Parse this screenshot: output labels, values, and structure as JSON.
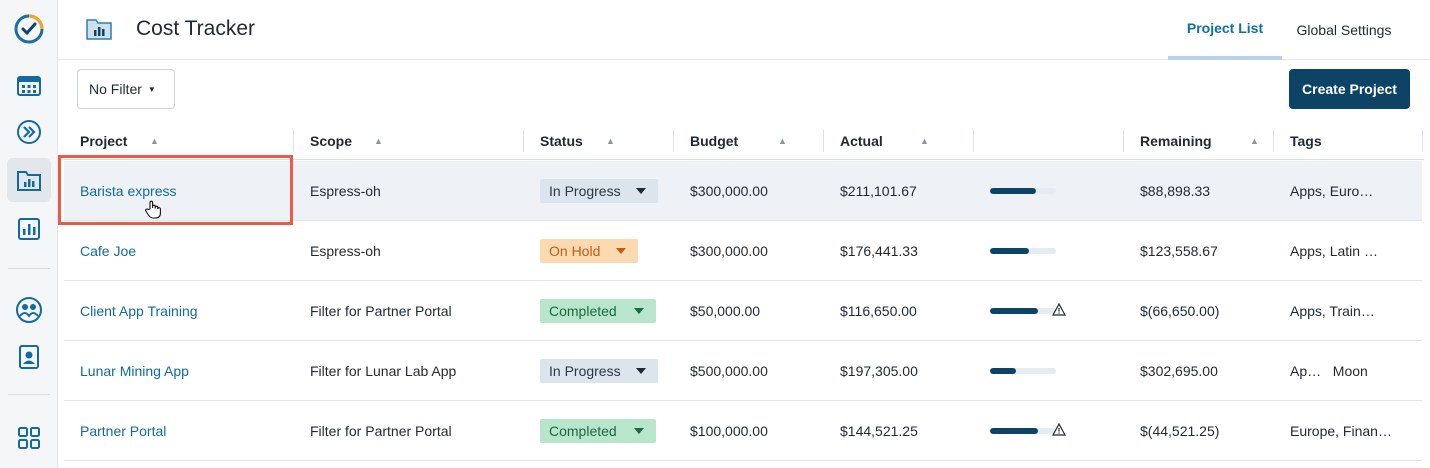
{
  "app": {
    "title": "Cost Tracker"
  },
  "rail": {
    "icons": [
      "check-circle-icon",
      "calendar-icon",
      "forward-icon",
      "folder-chart-icon",
      "bar-chart-icon",
      "team-icon",
      "contact-icon",
      "apps-grid-icon"
    ]
  },
  "tabs": [
    {
      "label": "Project List",
      "active": true
    },
    {
      "label": "Global Settings",
      "active": false
    }
  ],
  "toolbar": {
    "filter_label": "No Filter",
    "create_label": "Create Project"
  },
  "table": {
    "headers": [
      "Project",
      "Scope",
      "Status",
      "Budget",
      "Actual",
      "",
      "Remaining",
      "Tags"
    ],
    "rows": [
      {
        "project": "Barista express",
        "scope": "Espress-oh",
        "status": "In Progress",
        "status_kind": "progress",
        "budget": "$300,000.00",
        "actual": "$211,101.67",
        "spent": 0.7,
        "over": false,
        "remaining": "$88,898.33",
        "tags": "Apps, Euro…"
      },
      {
        "project": "Cafe Joe",
        "scope": "Espress-oh",
        "status": "On Hold",
        "status_kind": "hold",
        "budget": "$300,000.00",
        "actual": "$176,441.33",
        "spent": 0.59,
        "over": false,
        "remaining": "$123,558.67",
        "tags": "Apps, Latin …"
      },
      {
        "project": "Client App Training",
        "scope": "Filter for Partner Portal",
        "status": "Completed",
        "status_kind": "done",
        "budget": "$50,000.00",
        "actual": "$116,650.00",
        "spent": 1.0,
        "over": true,
        "remaining": "$(66,650.00)",
        "tags": "Apps, Train…"
      },
      {
        "project": "Lunar Mining App",
        "scope": "Filter for Lunar Lab App",
        "status": "In Progress",
        "status_kind": "progress",
        "budget": "$500,000.00",
        "actual": "$197,305.00",
        "spent": 0.39,
        "over": false,
        "remaining": "$302,695.00",
        "tags": "Ap…   Moon"
      },
      {
        "project": "Partner Portal",
        "scope": "Filter for Partner Portal",
        "status": "Completed",
        "status_kind": "done",
        "budget": "$100,000.00",
        "actual": "$144,521.25",
        "spent": 1.0,
        "over": true,
        "remaining": "$(44,521.25)",
        "tags": "Europe, Finan…"
      }
    ]
  },
  "colors": {
    "brand": "#0d4466",
    "link": "#136aa0",
    "highlight": "#ef5a47"
  }
}
